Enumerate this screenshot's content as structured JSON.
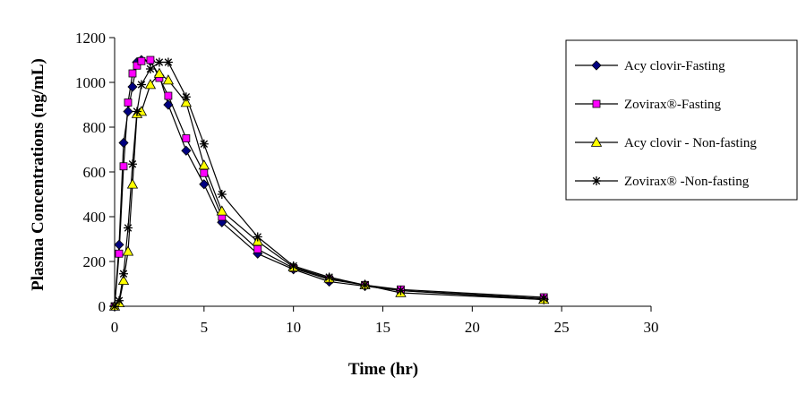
{
  "chart_data": {
    "type": "line",
    "title": "",
    "xlabel": "Time (hr)",
    "ylabel": "Plasma Concentrations (ng/mL)",
    "xlim": [
      0,
      30
    ],
    "ylim": [
      0,
      1200
    ],
    "xticks": [
      "0",
      "5",
      "10",
      "15",
      "20",
      "25",
      "30"
    ],
    "yticks": [
      "0",
      "200",
      "400",
      "600",
      "800",
      "1000",
      "1200"
    ],
    "grid": false,
    "legend_position": "right",
    "series": [
      {
        "name": "Acy clovir-Fasting",
        "marker": "diamond",
        "color": "#000080",
        "x": [
          0,
          0.25,
          0.5,
          0.75,
          1,
          1.25,
          1.5,
          2,
          2.5,
          3,
          4,
          5,
          6,
          8,
          10,
          12,
          14,
          16,
          24
        ],
        "y": [
          0,
          275,
          730,
          870,
          980,
          1090,
          1100,
          1095,
          1030,
          900,
          695,
          545,
          375,
          235,
          165,
          110,
          90,
          70,
          30
        ]
      },
      {
        "name": "Zovirax®-Fasting",
        "marker": "square",
        "color": "#ff00ff",
        "x": [
          0,
          0.25,
          0.5,
          0.75,
          1,
          1.25,
          1.5,
          2,
          2.5,
          3,
          4,
          5,
          6,
          8,
          10,
          12,
          14,
          16,
          24
        ],
        "y": [
          0,
          235,
          625,
          910,
          1040,
          1075,
          1095,
          1100,
          1020,
          940,
          750,
          595,
          400,
          255,
          170,
          120,
          95,
          75,
          40
        ]
      },
      {
        "name": "Acy clovir - Non-fasting",
        "marker": "triangle",
        "color": "#ffff00",
        "x": [
          0,
          0.25,
          0.5,
          0.75,
          1,
          1.25,
          1.5,
          2,
          2.5,
          3,
          4,
          5,
          6,
          8,
          10,
          12,
          14,
          16,
          24
        ],
        "y": [
          0,
          15,
          115,
          245,
          545,
          860,
          870,
          990,
          1040,
          1010,
          910,
          630,
          425,
          290,
          175,
          125,
          95,
          60,
          30
        ]
      },
      {
        "name": "Zovirax® -Non-fasting",
        "marker": "star",
        "color": "#000000",
        "x": [
          0,
          0.25,
          0.5,
          0.75,
          1,
          1.25,
          1.5,
          2,
          2.5,
          3,
          4,
          5,
          6,
          8,
          10,
          12,
          14,
          16,
          24
        ],
        "y": [
          0,
          25,
          145,
          350,
          635,
          870,
          990,
          1060,
          1090,
          1090,
          935,
          725,
          500,
          310,
          180,
          130,
          95,
          70,
          35
        ]
      }
    ]
  }
}
